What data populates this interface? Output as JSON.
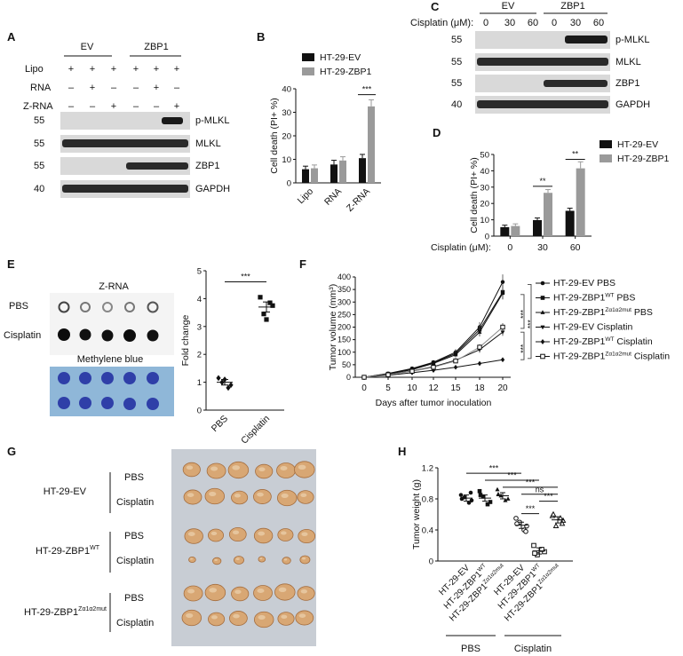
{
  "panels": {
    "A": {
      "label": "A",
      "groups": [
        "EV",
        "ZBP1"
      ],
      "conditions": [
        {
          "name": "Lipo",
          "marks": [
            "+",
            "+",
            "+",
            "+",
            "+",
            "+"
          ]
        },
        {
          "name": "RNA",
          "marks": [
            "–",
            "+",
            "–",
            "–",
            "+",
            "–"
          ]
        },
        {
          "name": "Z-RNA",
          "marks": [
            "–",
            "–",
            "+",
            "–",
            "–",
            "+"
          ]
        }
      ],
      "blots": [
        {
          "mw": "55",
          "name": "p-MLKL"
        },
        {
          "mw": "55",
          "name": "MLKL"
        },
        {
          "mw": "55",
          "name": "ZBP1"
        },
        {
          "mw": "40",
          "name": "GAPDH"
        }
      ]
    },
    "B": {
      "label": "B",
      "sig": "***"
    },
    "C": {
      "label": "C",
      "groups": [
        "EV",
        "ZBP1"
      ],
      "row_label": "Cisplatin (μM):",
      "doses": [
        "0",
        "30",
        "60",
        "0",
        "30",
        "60"
      ],
      "blots": [
        {
          "mw": "55",
          "name": "p-MLKL"
        },
        {
          "mw": "55",
          "name": "MLKL"
        },
        {
          "mw": "55",
          "name": "ZBP1"
        },
        {
          "mw": "40",
          "name": "GAPDH"
        }
      ]
    },
    "D": {
      "label": "D",
      "sig": [
        "**",
        "**"
      ]
    },
    "E": {
      "label": "E",
      "dot_title": "Z-RNA",
      "rows": [
        "PBS",
        "Cisplatin"
      ],
      "stain_title": "Methylene blue",
      "sig": "***"
    },
    "F": {
      "label": "F",
      "sig": [
        "***",
        "***",
        "***"
      ]
    },
    "G": {
      "label": "G",
      "groups": [
        {
          "base": "HT-29-EV",
          "sup": ""
        },
        {
          "base": "HT-29-ZBP1",
          "sup": "WT"
        },
        {
          "base": "HT-29-ZBP1",
          "sup": "Zα1α2mut"
        }
      ],
      "treatments": [
        "PBS",
        "Cisplatin"
      ]
    },
    "H": {
      "label": "H",
      "sig": [
        "***",
        "***",
        "***",
        "ns",
        "***",
        "***"
      ],
      "group_labels": [
        "PBS",
        "Cisplatin"
      ]
    }
  },
  "chart_data": [
    {
      "panel": "B",
      "type": "bar",
      "categories": [
        "Lipo",
        "RNA",
        "Z-RNA"
      ],
      "series": [
        {
          "name": "HT-29-EV",
          "color": "#111111",
          "values": [
            5.8,
            7.8,
            10.5
          ],
          "errors": [
            1.3,
            1.8,
            1.6
          ]
        },
        {
          "name": "HT-29-ZBP1",
          "color": "#9a9a9a",
          "values": [
            6.2,
            9.5,
            32.5
          ],
          "errors": [
            1.4,
            1.6,
            2.8
          ]
        }
      ],
      "ylabel": "Cell death (PI+ %)",
      "ylim": [
        0,
        40
      ],
      "yticks": [
        0,
        10,
        20,
        30,
        40
      ]
    },
    {
      "panel": "D",
      "type": "bar",
      "categories": [
        "0",
        "30",
        "60"
      ],
      "xlabel": "Cisplatin (μM):",
      "series": [
        {
          "name": "HT-29-EV",
          "color": "#111111",
          "values": [
            5.5,
            9.8,
            15.5
          ],
          "errors": [
            1.2,
            1.3,
            1.6
          ]
        },
        {
          "name": "HT-29-ZBP1",
          "color": "#9a9a9a",
          "values": [
            6.2,
            26.5,
            41.5
          ],
          "errors": [
            1.3,
            2.0,
            4.0
          ]
        }
      ],
      "ylabel": "Cell death (PI+ %)",
      "ylim": [
        0,
        50
      ],
      "yticks": [
        0,
        10,
        20,
        30,
        40,
        50
      ]
    },
    {
      "panel": "E",
      "type": "scatter",
      "categories": [
        "PBS",
        "Cisplatin"
      ],
      "series": [
        {
          "name": "PBS",
          "marker": "diamond",
          "values": [
            1.15,
            0.9,
            1.0,
            0.8,
            1.1
          ],
          "mean": 1.0,
          "sem": 0.1
        },
        {
          "name": "Cisplatin",
          "marker": "square",
          "values": [
            4.05,
            3.75,
            3.45,
            3.85,
            3.25
          ],
          "mean": 3.7,
          "sem": 0.18
        }
      ],
      "ylabel": "Fold change",
      "ylim": [
        0,
        5
      ],
      "yticks": [
        0,
        1,
        2,
        3,
        4,
        5
      ]
    },
    {
      "panel": "F",
      "type": "line",
      "x": [
        0,
        5,
        10,
        12,
        15,
        18,
        20
      ],
      "xlabel": "Days after tumor inoculation",
      "ylabel": "Tumor volume (mm³)",
      "ylim": [
        0,
        400
      ],
      "yticks": [
        0,
        50,
        100,
        150,
        200,
        250,
        300,
        350,
        400
      ],
      "series": [
        {
          "name_base": "HT-29-EV PBS",
          "sup": "",
          "name_tail": "",
          "marker": "circle",
          "values": [
            0,
            15,
            35,
            60,
            100,
            200,
            380
          ],
          "errors": [
            0,
            3,
            5,
            8,
            12,
            20,
            30
          ]
        },
        {
          "name_base": "HT-29-ZBP1",
          "sup": "WT",
          "name_tail": " PBS",
          "marker": "square",
          "values": [
            0,
            14,
            33,
            58,
            95,
            190,
            340
          ],
          "errors": [
            0,
            3,
            5,
            8,
            12,
            18,
            28
          ]
        },
        {
          "name_base": "HT-29-ZBP1",
          "sup": "Zα1α2mut",
          "name_tail": " PBS",
          "marker": "triangle",
          "values": [
            0,
            13,
            30,
            55,
            90,
            180,
            335
          ],
          "errors": [
            0,
            3,
            5,
            7,
            11,
            17,
            25
          ]
        },
        {
          "name_base": "HT-29-EV Cisplatin",
          "sup": "",
          "name_tail": "",
          "marker": "tri-down",
          "values": [
            0,
            10,
            25,
            42,
            68,
            110,
            180
          ],
          "errors": [
            0,
            2,
            4,
            6,
            9,
            12,
            15
          ]
        },
        {
          "name_base": "HT-29-ZBP1",
          "sup": "WT",
          "name_tail": " Cisplatin",
          "marker": "diamond",
          "values": [
            0,
            8,
            18,
            28,
            40,
            55,
            70
          ],
          "errors": [
            0,
            2,
            3,
            4,
            5,
            6,
            7
          ]
        },
        {
          "name_base": "HT-29-ZBP1",
          "sup": "Zα1α2mut",
          "name_tail": " Cisplatin",
          "marker": "open-square",
          "values": [
            0,
            10,
            24,
            40,
            65,
            120,
            200
          ],
          "errors": [
            0,
            2,
            4,
            6,
            9,
            12,
            16
          ]
        }
      ]
    },
    {
      "panel": "H",
      "type": "scatter",
      "categories_base": [
        "HT-29-EV",
        "HT-29-ZBP1",
        "HT-29-ZBP1",
        "HT-29-EV",
        "HT-29-ZBP1",
        "HT-29-ZBP1"
      ],
      "categories_sup": [
        "",
        "WT",
        "Zα1α2mut",
        "",
        "WT",
        "Zα1α2mut"
      ],
      "treatment_groups": [
        "PBS",
        "PBS",
        "PBS",
        "Cisplatin",
        "Cisplatin",
        "Cisplatin"
      ],
      "series": [
        {
          "marker": "circle",
          "values": [
            0.85,
            0.78,
            0.82,
            0.75,
            0.8,
            0.88
          ],
          "mean": 0.81
        },
        {
          "marker": "square",
          "values": [
            0.9,
            0.76,
            0.83,
            0.73,
            0.85
          ],
          "mean": 0.81
        },
        {
          "marker": "triangle",
          "values": [
            0.92,
            0.8,
            0.84,
            0.78,
            0.86
          ],
          "mean": 0.84
        },
        {
          "marker": "open-circle",
          "values": [
            0.55,
            0.45,
            0.5,
            0.4,
            0.48,
            0.38
          ],
          "mean": 0.46
        },
        {
          "marker": "open-square",
          "values": [
            0.2,
            0.12,
            0.08,
            0.15,
            0.1
          ],
          "mean": 0.13
        },
        {
          "marker": "open-triangle",
          "values": [
            0.58,
            0.52,
            0.45,
            0.55,
            0.6,
            0.48
          ],
          "mean": 0.53
        }
      ],
      "ylabel": "Tumor weight (g)",
      "ylim": [
        0,
        1.2
      ],
      "yticks": [
        0,
        0.4,
        0.8,
        1.2
      ]
    }
  ]
}
